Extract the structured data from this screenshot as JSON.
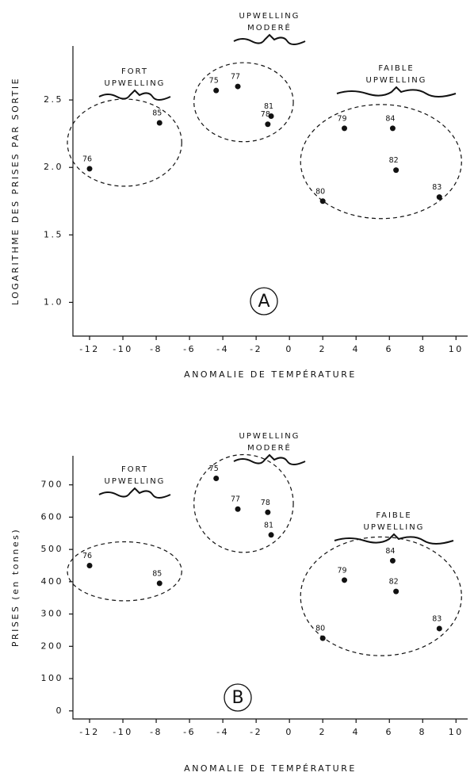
{
  "chart_data": [
    {
      "type": "scatter",
      "panel": "A",
      "x_label": "ANOMALIE DE TEMPÉRATURE",
      "y_label": "LOGARITHME DES PRISES PAR SORTIE",
      "groups": [
        {
          "lines": [
            "FORT",
            "UPWELLING"
          ]
        },
        {
          "lines": [
            "UPWELLING",
            "MODERÉ"
          ]
        },
        {
          "lines": [
            "FAIBLE",
            "UPWELLING"
          ]
        }
      ],
      "labels": [
        "75",
        "76",
        "77",
        "78",
        "79",
        "80",
        "81",
        "82",
        "83",
        "84",
        "85"
      ],
      "x": [
        -4.4,
        -12,
        -3.1,
        -1.3,
        3.3,
        2.0,
        -1.1,
        6.4,
        9.0,
        6.2,
        -7.8
      ],
      "y": [
        2.57,
        1.99,
        2.6,
        2.32,
        2.29,
        1.75,
        2.38,
        1.98,
        1.78,
        2.29,
        2.33
      ],
      "color": "#111111",
      "xlim": [
        -13,
        10.7
      ],
      "xticks": [
        -12,
        -10,
        -8,
        -6,
        -4,
        -2,
        0,
        2,
        4,
        6,
        8,
        10
      ],
      "ylim": [
        0.75,
        2.9
      ],
      "yticks": [
        {
          "value": 1,
          "label": "1.0"
        },
        1.5,
        {
          "value": 2,
          "label": "2.0"
        },
        2.5
      ]
    },
    {
      "type": "scatter",
      "panel": "B",
      "x_label": "ANOMALIE DE TEMPÉRATURE",
      "y_label": "PRISES (en tonnes)",
      "groups": [
        {
          "lines": [
            "FORT",
            "UPWELLING"
          ]
        },
        {
          "lines": [
            "UPWELLING",
            "MODERÉ"
          ]
        },
        {
          "lines": [
            "FAIBLE",
            "UPWELLING"
          ]
        }
      ],
      "labels": [
        "75",
        "76",
        "77",
        "78",
        "79",
        "80",
        "81",
        "82",
        "83",
        "84",
        "85"
      ],
      "x": [
        -4.4,
        -12,
        -3.1,
        -1.3,
        3.3,
        2.0,
        -1.1,
        6.4,
        9.0,
        6.2,
        -7.8
      ],
      "y": [
        720,
        450,
        625,
        615,
        405,
        225,
        545,
        370,
        255,
        465,
        395
      ],
      "color": "#111111",
      "xlim": [
        -13,
        10.7
      ],
      "xticks": [
        -12,
        -10,
        -8,
        -6,
        -4,
        -2,
        0,
        2,
        4,
        6,
        8,
        10
      ],
      "ylim": [
        -25,
        790
      ],
      "yticks": [
        0,
        100,
        200,
        300,
        400,
        500,
        600,
        700
      ]
    }
  ]
}
